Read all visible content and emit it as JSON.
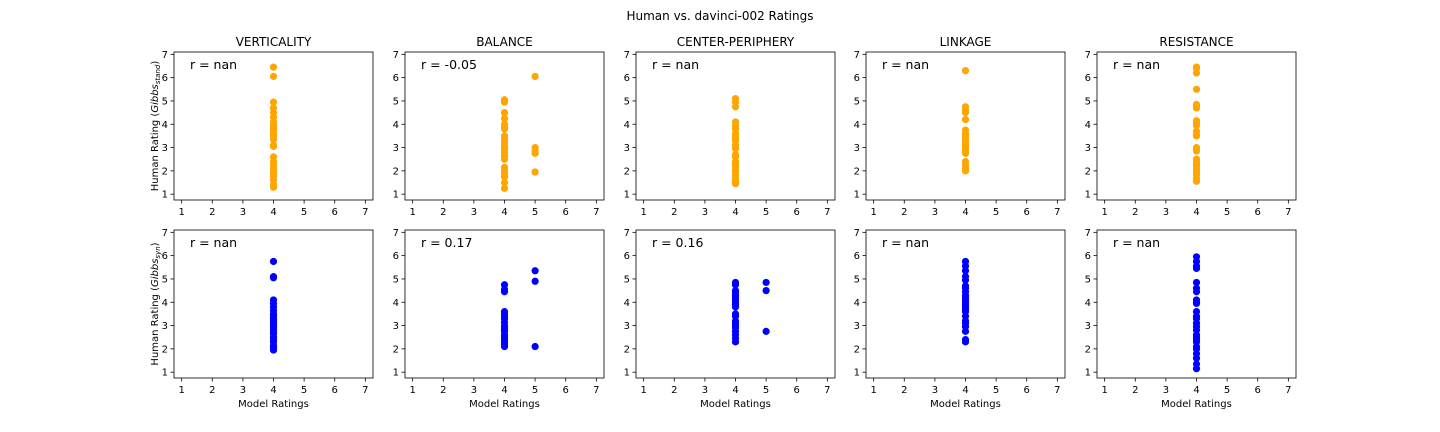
{
  "figure_title": "Human vs. davinci-002 Ratings",
  "row_ylabels": [
    {
      "main": "Human Rating (",
      "italic": "Gibbs",
      "sub": "stand",
      "close": ")"
    },
    {
      "main": "Human Rating (",
      "italic": "Gibbs",
      "sub": "syn",
      "close": ")"
    }
  ],
  "xlabel": "Model Ratings",
  "colors": {
    "row0": "#FFA500",
    "row1": "#0000FF"
  },
  "chart_data": [
    {
      "type": "scatter",
      "row": 0,
      "col": 0,
      "title": "VERTICALITY",
      "annotation": "r = nan",
      "xlim": [
        0.75,
        7.25
      ],
      "ylim": [
        0.75,
        7.1
      ],
      "xticks": [
        1,
        2,
        3,
        4,
        5,
        6,
        7
      ],
      "yticks": [
        1,
        2,
        3,
        4,
        5,
        6,
        7
      ],
      "x": [
        4,
        4,
        4,
        4,
        4,
        4,
        4,
        4,
        4,
        4,
        4,
        4,
        4,
        4,
        4,
        4,
        4,
        4,
        4,
        4,
        4,
        4,
        4,
        4,
        4
      ],
      "y": [
        6.45,
        6.05,
        4.95,
        4.7,
        4.5,
        4.3,
        4.1,
        3.95,
        3.85,
        3.75,
        3.6,
        3.5,
        3.35,
        3.1,
        3.05,
        2.6,
        2.4,
        2.25,
        2.1,
        1.95,
        1.85,
        1.75,
        1.6,
        1.4,
        1.3
      ]
    },
    {
      "type": "scatter",
      "row": 0,
      "col": 1,
      "title": "BALANCE",
      "annotation": "r = -0.05",
      "xlim": [
        0.75,
        7.25
      ],
      "ylim": [
        0.75,
        7.1
      ],
      "xticks": [
        1,
        2,
        3,
        4,
        5,
        6,
        7
      ],
      "yticks": [
        1,
        2,
        3,
        4,
        5,
        6,
        7
      ],
      "x": [
        4,
        4,
        4,
        4,
        4,
        4,
        4,
        4,
        4,
        4,
        4,
        4,
        4,
        4,
        4,
        4,
        4,
        4,
        4,
        4,
        4,
        5,
        5,
        5,
        5,
        5
      ],
      "y": [
        5.05,
        4.95,
        4.5,
        4.25,
        4.0,
        3.8,
        3.5,
        3.35,
        3.2,
        3.05,
        2.95,
        2.8,
        2.65,
        2.5,
        2.15,
        2.0,
        1.85,
        1.75,
        1.5,
        1.25,
        3.85,
        6.05,
        3.0,
        2.85,
        2.75,
        1.95
      ]
    },
    {
      "type": "scatter",
      "row": 0,
      "col": 2,
      "title": "CENTER-PERIPHERY",
      "annotation": "r = nan",
      "xlim": [
        0.75,
        7.25
      ],
      "ylim": [
        0.75,
        7.1
      ],
      "xticks": [
        1,
        2,
        3,
        4,
        5,
        6,
        7
      ],
      "yticks": [
        1,
        2,
        3,
        4,
        5,
        6,
        7
      ],
      "x": [
        4,
        4,
        4,
        4,
        4,
        4,
        4,
        4,
        4,
        4,
        4,
        4,
        4,
        4,
        4,
        4,
        4,
        4,
        4,
        4,
        4,
        4,
        4
      ],
      "y": [
        5.1,
        4.95,
        4.75,
        4.1,
        3.95,
        3.8,
        3.6,
        3.5,
        3.3,
        3.1,
        2.95,
        2.7,
        2.6,
        2.4,
        2.3,
        2.2,
        2.05,
        1.95,
        1.8,
        1.65,
        1.55,
        1.45,
        3.4
      ]
    },
    {
      "type": "scatter",
      "row": 0,
      "col": 3,
      "title": "LINKAGE",
      "annotation": "r = nan",
      "xlim": [
        0.75,
        7.25
      ],
      "ylim": [
        0.75,
        7.1
      ],
      "xticks": [
        1,
        2,
        3,
        4,
        5,
        6,
        7
      ],
      "yticks": [
        1,
        2,
        3,
        4,
        5,
        6,
        7
      ],
      "x": [
        4,
        4,
        4,
        4,
        4,
        4,
        4,
        4,
        4,
        4,
        4,
        4,
        4,
        4,
        4,
        4,
        4,
        4,
        4
      ],
      "y": [
        6.3,
        4.75,
        4.6,
        4.5,
        4.2,
        3.75,
        3.6,
        3.5,
        3.4,
        3.25,
        3.15,
        3.05,
        2.95,
        2.85,
        2.75,
        2.4,
        2.25,
        2.1,
        2.0
      ]
    },
    {
      "type": "scatter",
      "row": 0,
      "col": 4,
      "title": "RESISTANCE",
      "annotation": "r = nan",
      "xlim": [
        0.75,
        7.25
      ],
      "ylim": [
        0.75,
        7.1
      ],
      "xticks": [
        1,
        2,
        3,
        4,
        5,
        6,
        7
      ],
      "yticks": [
        1,
        2,
        3,
        4,
        5,
        6,
        7
      ],
      "x": [
        4,
        4,
        4,
        4,
        4,
        4,
        4,
        4,
        4,
        4,
        4,
        4,
        4,
        4,
        4,
        4,
        4,
        4,
        4,
        4,
        4,
        4,
        4,
        4,
        4
      ],
      "y": [
        6.45,
        6.4,
        6.2,
        5.5,
        4.85,
        4.75,
        4.7,
        4.15,
        4.05,
        3.95,
        3.7,
        3.55,
        3.5,
        3.0,
        2.95,
        2.85,
        2.5,
        2.4,
        2.3,
        2.2,
        2.05,
        1.95,
        1.85,
        1.7,
        1.55
      ]
    },
    {
      "type": "scatter",
      "row": 1,
      "col": 0,
      "title": "",
      "annotation": "r = nan",
      "xlim": [
        0.75,
        7.25
      ],
      "ylim": [
        0.75,
        7.1
      ],
      "xticks": [
        1,
        2,
        3,
        4,
        5,
        6,
        7
      ],
      "yticks": [
        1,
        2,
        3,
        4,
        5,
        6,
        7
      ],
      "x": [
        4,
        4,
        4,
        4,
        4,
        4,
        4,
        4,
        4,
        4,
        4,
        4,
        4,
        4,
        4,
        4,
        4,
        4,
        4,
        4,
        4,
        4,
        4
      ],
      "y": [
        5.75,
        5.1,
        5.05,
        4.1,
        3.95,
        3.8,
        3.65,
        3.5,
        3.45,
        3.35,
        3.25,
        3.15,
        3.05,
        2.95,
        2.85,
        2.75,
        2.65,
        2.5,
        2.4,
        2.3,
        2.15,
        2.05,
        1.95
      ]
    },
    {
      "type": "scatter",
      "row": 1,
      "col": 1,
      "title": "",
      "annotation": "r = 0.17",
      "xlim": [
        0.75,
        7.25
      ],
      "ylim": [
        0.75,
        7.1
      ],
      "xticks": [
        1,
        2,
        3,
        4,
        5,
        6,
        7
      ],
      "yticks": [
        1,
        2,
        3,
        4,
        5,
        6,
        7
      ],
      "x": [
        4,
        4,
        4,
        4,
        4,
        4,
        4,
        4,
        4,
        4,
        4,
        4,
        4,
        4,
        4,
        4,
        4,
        4,
        5,
        5,
        5
      ],
      "y": [
        4.75,
        4.55,
        4.45,
        3.6,
        3.5,
        3.4,
        3.3,
        3.15,
        3.0,
        2.9,
        2.8,
        2.75,
        2.6,
        2.5,
        2.4,
        2.3,
        2.2,
        2.1,
        5.35,
        4.9,
        2.1
      ]
    },
    {
      "type": "scatter",
      "row": 1,
      "col": 2,
      "title": "",
      "annotation": "r = 0.16",
      "xlim": [
        0.75,
        7.25
      ],
      "ylim": [
        0.75,
        7.1
      ],
      "xticks": [
        1,
        2,
        3,
        4,
        5,
        6,
        7
      ],
      "yticks": [
        1,
        2,
        3,
        4,
        5,
        6,
        7
      ],
      "x": [
        4,
        4,
        4,
        4,
        4,
        4,
        4,
        4,
        4,
        4,
        4,
        4,
        4,
        4,
        4,
        4,
        4,
        4,
        4,
        4,
        5,
        5,
        5
      ],
      "y": [
        4.85,
        4.75,
        4.5,
        4.4,
        4.3,
        4.2,
        4.1,
        4.0,
        3.9,
        3.8,
        3.5,
        3.4,
        3.2,
        3.1,
        3.0,
        2.9,
        2.75,
        2.6,
        2.45,
        2.3,
        4.85,
        4.5,
        2.75
      ]
    },
    {
      "type": "scatter",
      "row": 1,
      "col": 3,
      "title": "",
      "annotation": "r = nan",
      "xlim": [
        0.75,
        7.25
      ],
      "ylim": [
        0.75,
        7.1
      ],
      "xticks": [
        1,
        2,
        3,
        4,
        5,
        6,
        7
      ],
      "yticks": [
        1,
        2,
        3,
        4,
        5,
        6,
        7
      ],
      "x": [
        4,
        4,
        4,
        4,
        4,
        4,
        4,
        4,
        4,
        4,
        4,
        4,
        4,
        4,
        4,
        4,
        4,
        4,
        4,
        4,
        4,
        4,
        4
      ],
      "y": [
        5.75,
        5.55,
        5.35,
        5.1,
        4.95,
        4.7,
        4.6,
        4.45,
        4.3,
        4.2,
        4.1,
        4.0,
        3.9,
        3.8,
        3.7,
        3.6,
        3.4,
        3.2,
        3.1,
        2.95,
        2.75,
        2.4,
        2.3
      ]
    },
    {
      "type": "scatter",
      "row": 1,
      "col": 4,
      "title": "",
      "annotation": "r = nan",
      "xlim": [
        0.75,
        7.25
      ],
      "ylim": [
        0.75,
        7.1
      ],
      "xticks": [
        1,
        2,
        3,
        4,
        5,
        6,
        7
      ],
      "yticks": [
        1,
        2,
        3,
        4,
        5,
        6,
        7
      ],
      "x": [
        4,
        4,
        4,
        4,
        4,
        4,
        4,
        4,
        4,
        4,
        4,
        4,
        4,
        4,
        4,
        4,
        4,
        4,
        4,
        4,
        4,
        4,
        4,
        4,
        4,
        4
      ],
      "y": [
        5.95,
        5.75,
        5.55,
        5.45,
        4.85,
        4.6,
        4.45,
        4.1,
        4.0,
        3.95,
        3.6,
        3.4,
        3.3,
        3.1,
        2.95,
        2.8,
        2.6,
        2.5,
        2.4,
        2.3,
        2.1,
        2.0,
        1.8,
        1.6,
        1.35,
        1.15
      ]
    }
  ]
}
